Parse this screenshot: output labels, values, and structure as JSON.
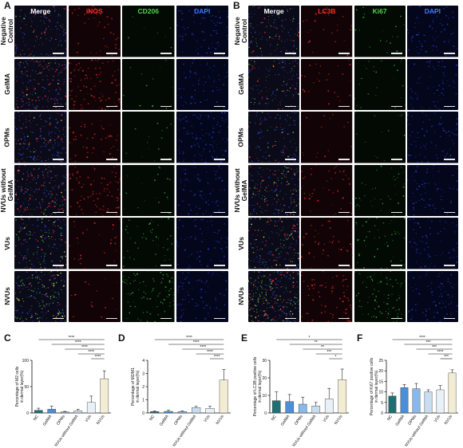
{
  "panels": {
    "A": {
      "label": "A",
      "channels": [
        {
          "name": "Merge",
          "color": "#ffffff"
        },
        {
          "name": "iNOS",
          "color": "#ff2a2a"
        },
        {
          "name": "CD206",
          "color": "#4cd84c"
        },
        {
          "name": "DAPI",
          "color": "#3a7bff"
        }
      ],
      "rows": [
        "Negative Control",
        "GelMA",
        "OPMs",
        "NVUs without GelMA",
        "VUs",
        "NVUs"
      ]
    },
    "B": {
      "label": "B",
      "channels": [
        {
          "name": "Merge",
          "color": "#ffffff"
        },
        {
          "name": "LC3B",
          "color": "#ff2a2a"
        },
        {
          "name": "Ki67",
          "color": "#4cd84c"
        },
        {
          "name": "DAPI",
          "color": "#3a7bff"
        }
      ],
      "rows": [
        "Negative Control",
        "GelMA",
        "OPMs",
        "NVUs without GelMA",
        "VUs",
        "NVUs"
      ]
    }
  },
  "colors": {
    "bar_fills": [
      "#1f6f73",
      "#4a8fd8",
      "#8ab8e8",
      "#c8ddf0",
      "#e8f0f8",
      "#f2ecd2"
    ]
  },
  "chart_data": [
    {
      "panel": "C",
      "type": "bar",
      "categories": [
        "NC",
        "GelMA",
        "OPMs",
        "NVUs without GelMA",
        "VUs",
        "NVUs"
      ],
      "values": [
        5,
        7,
        2,
        4,
        20,
        65
      ],
      "errors": [
        4,
        6,
        1,
        3,
        12,
        15
      ],
      "ylabel": "Percentage of M2 cells\nin dermal layer(%)",
      "ylim": [
        0,
        100
      ],
      "yticks": [
        0,
        50,
        100
      ],
      "significance": [
        {
          "from": 0,
          "to": 5,
          "label": "****"
        },
        {
          "from": 1,
          "to": 5,
          "label": "****"
        },
        {
          "from": 2,
          "to": 5,
          "label": "****"
        },
        {
          "from": 3,
          "to": 5,
          "label": "****"
        },
        {
          "from": 4,
          "to": 5,
          "label": "****"
        }
      ]
    },
    {
      "panel": "D",
      "type": "bar",
      "categories": [
        "NC",
        "GelMA",
        "OPMs",
        "NVUs without GelMA",
        "VUs",
        "NVUs"
      ],
      "values": [
        0.1,
        0.12,
        0.1,
        0.4,
        0.35,
        2.5
      ],
      "errors": [
        0.05,
        0.08,
        0.05,
        0.1,
        0.15,
        0.8
      ],
      "ylabel": "Percentage of M2/M1\nin dermal layer(%)",
      "ylim": [
        0,
        4
      ],
      "yticks": [
        0,
        1,
        2,
        3,
        4
      ],
      "significance": [
        {
          "from": 0,
          "to": 5,
          "label": "****"
        },
        {
          "from": 1,
          "to": 5,
          "label": "****"
        },
        {
          "from": 2,
          "to": 5,
          "label": "****"
        },
        {
          "from": 3,
          "to": 5,
          "label": "****"
        },
        {
          "from": 4,
          "to": 5,
          "label": "****"
        }
      ]
    },
    {
      "panel": "E",
      "type": "bar",
      "categories": [
        "NC",
        "GelMA",
        "OPMs",
        "NVUs without GelMA",
        "VUs",
        "NVUs"
      ],
      "values": [
        7,
        6.5,
        5,
        4,
        8,
        19
      ],
      "errors": [
        5,
        4,
        4,
        2,
        6,
        6
      ],
      "ylabel": "Percentage of LC3B positive cells\nin dermal layer(%)",
      "ylim": [
        0,
        30
      ],
      "yticks": [
        0,
        10,
        20,
        30
      ],
      "significance": [
        {
          "from": 0,
          "to": 5,
          "label": "*"
        },
        {
          "from": 1,
          "to": 5,
          "label": "**"
        },
        {
          "from": 2,
          "to": 5,
          "label": "**"
        },
        {
          "from": 3,
          "to": 5,
          "label": "***"
        },
        {
          "from": 4,
          "to": 5,
          "label": "*"
        }
      ]
    },
    {
      "panel": "F",
      "type": "bar",
      "categories": [
        "NC",
        "GelMA",
        "OPMs",
        "NVUs without GelMA",
        "VUs",
        "NVUs"
      ],
      "values": [
        8,
        12,
        11.5,
        10,
        11,
        19
      ],
      "errors": [
        1.5,
        1.5,
        2.5,
        1,
        2,
        1.5
      ],
      "ylabel": "Percentage of Ki67 positive cells\nin dermal layer(%)",
      "ylim": [
        0,
        25
      ],
      "yticks": [
        0,
        5,
        10,
        15,
        20,
        25
      ],
      "significance": [
        {
          "from": 0,
          "to": 5,
          "label": "****"
        },
        {
          "from": 1,
          "to": 5,
          "label": "***"
        },
        {
          "from": 2,
          "to": 5,
          "label": "***"
        },
        {
          "from": 3,
          "to": 5,
          "label": "****"
        },
        {
          "from": 4,
          "to": 5,
          "label": "***"
        }
      ]
    }
  ]
}
